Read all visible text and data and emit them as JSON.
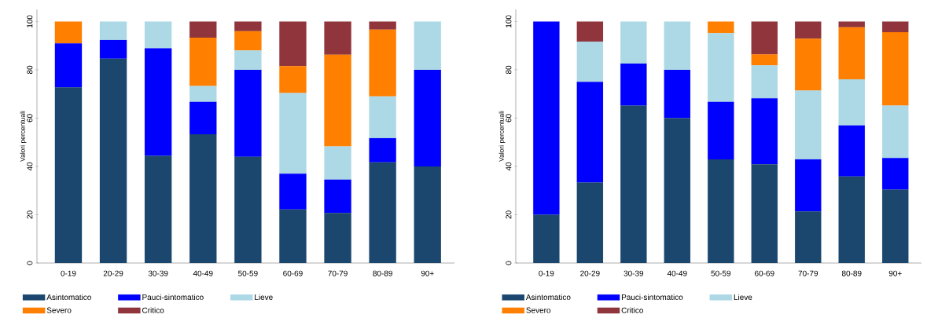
{
  "chart_data": [
    {
      "type": "bar",
      "stacked": true,
      "ylabel": "Valori percentuali",
      "legend": "bottom",
      "categories": [
        "0-19",
        "20-29",
        "30-39",
        "40-49",
        "50-59",
        "60-69",
        "70-79",
        "80-89",
        "90+"
      ],
      "ylim": [
        0,
        105
      ],
      "yticks": [
        0,
        20,
        40,
        60,
        80,
        100
      ],
      "series": [
        {
          "name": "Asintomatico",
          "color": "#1b476e",
          "values": [
            72.7,
            84.6,
            44.4,
            53.3,
            44,
            22.2,
            20.7,
            41.7,
            40
          ]
        },
        {
          "name": "Pauci-sintomatico",
          "color": "#0000ff",
          "values": [
            18.2,
            7.7,
            44.5,
            13.4,
            36,
            14.8,
            13.8,
            10,
            40
          ]
        },
        {
          "name": "Lieve",
          "color": "#add8e6",
          "values": [
            0,
            7.7,
            11.1,
            6.6,
            8,
            33.4,
            13.8,
            17.3,
            20
          ]
        },
        {
          "name": "Severo",
          "color": "#ff7f00",
          "values": [
            9.1,
            0,
            0,
            20,
            8,
            11.1,
            37.9,
            27.6,
            0
          ]
        },
        {
          "name": "Critico",
          "color": "#90353b",
          "values": [
            0,
            0,
            0,
            6.7,
            4,
            18.5,
            13.8,
            3.4,
            0
          ]
        }
      ]
    },
    {
      "type": "bar",
      "stacked": true,
      "ylabel": "Valori percentuali",
      "legend": "bottom",
      "categories": [
        "0-19",
        "20-29",
        "30-39",
        "40-49",
        "50-59",
        "60-69",
        "70-79",
        "80-89",
        "90+"
      ],
      "ylim": [
        0,
        105
      ],
      "yticks": [
        0,
        20,
        40,
        60,
        80,
        100
      ],
      "series": [
        {
          "name": "Asintomatico",
          "color": "#1b476e",
          "values": [
            20,
            33.3,
            65.2,
            60,
            42.9,
            40.9,
            21.4,
            35.8,
            30.4
          ]
        },
        {
          "name": "Pauci-sintomatico",
          "color": "#0000ff",
          "values": [
            80,
            41.7,
            17.4,
            20,
            23.8,
            27.3,
            21.5,
            21.2,
            13.1
          ]
        },
        {
          "name": "Lieve",
          "color": "#add8e6",
          "values": [
            0,
            16.7,
            17.4,
            20,
            28.5,
            13.6,
            28.5,
            19.1,
            21.7
          ]
        },
        {
          "name": "Severo",
          "color": "#ff7f00",
          "values": [
            0,
            0,
            0,
            0,
            4.8,
            4.6,
            21.5,
            21.5,
            30.4
          ]
        },
        {
          "name": "Critico",
          "color": "#90353b",
          "values": [
            0,
            8.3,
            0,
            0,
            0,
            13.6,
            7.1,
            2.4,
            4.4
          ]
        }
      ]
    }
  ]
}
